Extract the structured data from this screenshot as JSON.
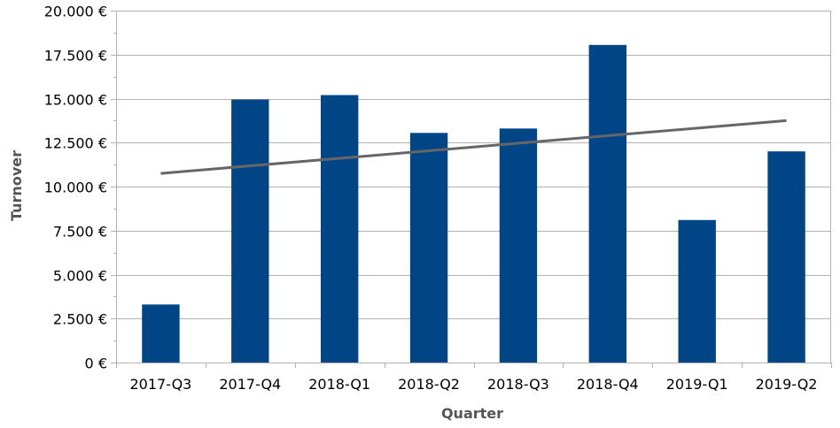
{
  "chart_data": {
    "type": "bar",
    "title": "",
    "xlabel": "Quarter",
    "ylabel": "Turnover",
    "categories": [
      "2017-Q3",
      "2017-Q4",
      "2018-Q1",
      "2018-Q2",
      "2018-Q3",
      "2018-Q4",
      "2019-Q1",
      "2019-Q2"
    ],
    "series": [
      {
        "values": [
          3300,
          14950,
          15200,
          13050,
          13300,
          18050,
          8100,
          12000
        ],
        "color": "#004586"
      }
    ],
    "trendline": {
      "type": "linear",
      "start": 10750,
      "end": 13750,
      "color": "#666666"
    },
    "ylim": [
      0,
      20000
    ],
    "yticks": [
      {
        "value": 0,
        "label": "0 €"
      },
      {
        "value": 2500,
        "label": "2.500 €"
      },
      {
        "value": 5000,
        "label": "5.000 €"
      },
      {
        "value": 7500,
        "label": "7.500 €"
      },
      {
        "value": 10000,
        "label": "10.000 €"
      },
      {
        "value": 12500,
        "label": "12.500 €"
      },
      {
        "value": 15000,
        "label": "15.000 €"
      },
      {
        "value": 17500,
        "label": "17.500 €"
      },
      {
        "value": 20000,
        "label": "20.000 €"
      }
    ],
    "grid": true,
    "legend": "none"
  }
}
